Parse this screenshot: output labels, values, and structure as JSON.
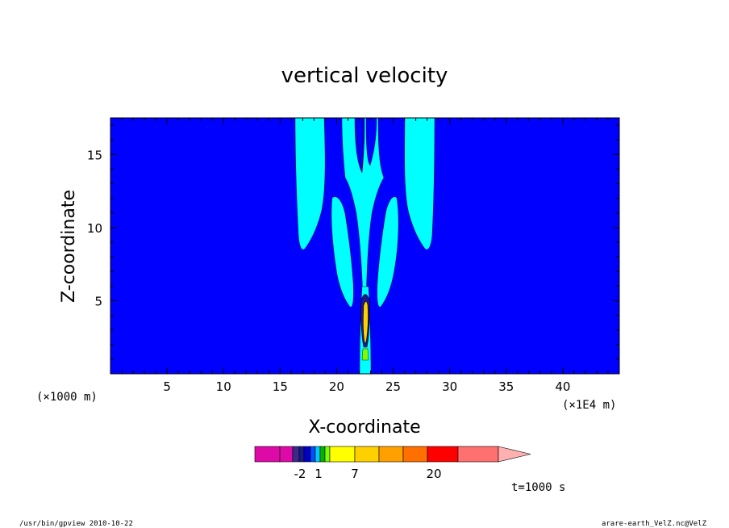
{
  "chart_data": {
    "type": "heatmap",
    "title": "vertical velocity",
    "xlabel": "X-coordinate",
    "ylabel": "Z-coordinate",
    "x_unit_left": "(×1000 m)",
    "x_unit_right": "(×1E4 m)",
    "xlim": [
      0,
      45
    ],
    "ylim": [
      0,
      17.5
    ],
    "xticks": [
      5,
      10,
      15,
      20,
      25,
      30,
      35,
      40
    ],
    "yticks": [
      5,
      10,
      15
    ],
    "time_label": "t=1000 s",
    "colorbar": {
      "tick_labels": [
        "-2",
        "1",
        "7",
        "20"
      ],
      "colors": [
        "#dd0aa8",
        "#dd0aa8",
        "#3a2a8c",
        "#1a1a8a",
        "#0000c8",
        "#0050ff",
        "#00c8ff",
        "#00b400",
        "#7cfc00",
        "#ffff00",
        "#ffd000",
        "#ffa000",
        "#ff7000",
        "#ff0000",
        "#ff7070",
        "#ffb0b0"
      ]
    },
    "field_colors": {
      "background": "#0000ff",
      "weak_updraft": "#00ffff",
      "core": "#ffd000",
      "core_edge": "#000000"
    }
  },
  "footer": {
    "left": "/usr/bin/gpview   2010-10-22",
    "right": "arare-earth_VelZ.nc@VelZ"
  }
}
